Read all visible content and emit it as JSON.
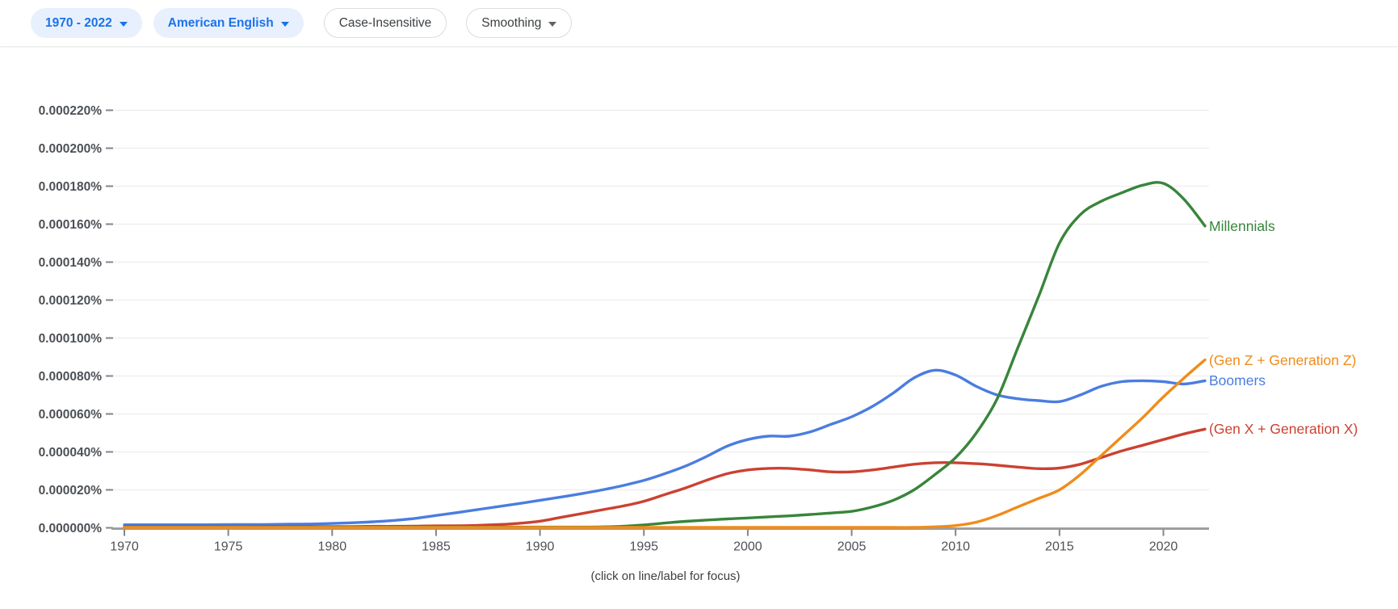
{
  "toolbar": {
    "year_range": {
      "label": "1970 - 2022"
    },
    "corpus": {
      "label": "American English"
    },
    "case_sensitivity": {
      "label": "Case-Insensitive"
    },
    "smoothing": {
      "label": "Smoothing"
    }
  },
  "chart_caption": "(click on line/label for focus)",
  "colors": {
    "accent_blue": "#1a73e8",
    "pill_selected_bg": "#e8f0fe",
    "pill_border": "#dadce0",
    "gridline": "#ededed",
    "axis_line": "#9e9e9e",
    "tick_mark": "#80868b",
    "axis_label_text": "#4d5156",
    "caption_text": "#3c4043"
  },
  "chart_data": {
    "type": "line",
    "title": "",
    "xlabel": "",
    "ylabel": "",
    "x_range": [
      1970,
      2022
    ],
    "x_ticks": [
      1970,
      1975,
      1980,
      1985,
      1990,
      1995,
      2000,
      2005,
      2010,
      2015,
      2020
    ],
    "y_tick_labels": [
      "0.000000%",
      "0.000020%",
      "0.000040%",
      "0.000060%",
      "0.000080%",
      "0.000100%",
      "0.000120%",
      "0.000140%",
      "0.000160%",
      "0.000180%",
      "0.000200%",
      "0.000220%"
    ],
    "y_ticks_e6": [
      0,
      20,
      40,
      60,
      80,
      100,
      120,
      140,
      160,
      180,
      200,
      220
    ],
    "value_unit": "1e-6 %",
    "grid": true,
    "legend_position": "right-of-line-end",
    "x_start_year": 1970,
    "series": [
      {
        "name": "Boomers",
        "color": "#4a7de0",
        "values_e6": [
          1.6,
          1.6,
          1.6,
          1.6,
          1.6,
          1.7,
          1.7,
          1.8,
          1.9,
          2.0,
          2.3,
          2.7,
          3.2,
          3.9,
          5.0,
          6.5,
          8.0,
          9.6,
          11.2,
          12.8,
          14.5,
          16.2,
          18.0,
          20.0,
          22.3,
          25.0,
          28.5,
          32.5,
          37.5,
          43.0,
          46.5,
          48.3,
          48.3,
          50.5,
          54.5,
          58.5,
          64.0,
          71.0,
          79.0,
          83.0,
          80.5,
          74.5,
          70.0,
          68.0,
          67.0,
          66.5,
          70.0,
          74.5,
          77.0,
          77.5,
          77.0,
          75.8,
          77.5
        ]
      },
      {
        "name": "(Gen X + Generation X)",
        "color": "#cc4131",
        "values_e6": [
          0.6,
          0.6,
          0.6,
          0.6,
          0.6,
          0.6,
          0.6,
          0.7,
          0.7,
          0.7,
          0.7,
          0.7,
          0.8,
          0.8,
          0.9,
          1.0,
          1.1,
          1.3,
          1.7,
          2.4,
          3.5,
          5.5,
          7.5,
          9.5,
          11.5,
          14.0,
          17.5,
          21.0,
          25.0,
          28.5,
          30.5,
          31.3,
          31.3,
          30.5,
          29.5,
          29.5,
          30.5,
          32.0,
          33.5,
          34.3,
          34.3,
          33.8,
          33.0,
          32.0,
          31.2,
          31.5,
          33.5,
          37.0,
          40.5,
          43.5,
          46.5,
          49.5,
          52.0
        ]
      },
      {
        "name": "Millennials",
        "color": "#38853a",
        "values_e6": [
          0.3,
          0.3,
          0.3,
          0.3,
          0.3,
          0.3,
          0.3,
          0.3,
          0.3,
          0.3,
          0.3,
          0.3,
          0.3,
          0.4,
          0.4,
          0.4,
          0.4,
          0.4,
          0.4,
          0.4,
          0.4,
          0.4,
          0.4,
          0.5,
          0.8,
          1.5,
          2.5,
          3.4,
          4.1,
          4.7,
          5.2,
          5.8,
          6.3,
          7.0,
          7.8,
          8.7,
          11.0,
          14.5,
          20.0,
          28.0,
          37.0,
          50.0,
          68.0,
          95.0,
          122.0,
          150.0,
          165.0,
          172.0,
          176.5,
          180.5,
          181.5,
          173.0,
          159.0
        ]
      },
      {
        "name": "(Gen Z + Generation Z)",
        "color": "#f08c1a",
        "values_e6": [
          0.2,
          0.2,
          0.2,
          0.2,
          0.2,
          0.2,
          0.2,
          0.2,
          0.2,
          0.2,
          0.2,
          0.2,
          0.2,
          0.2,
          0.2,
          0.2,
          0.2,
          0.2,
          0.2,
          0.2,
          0.2,
          0.2,
          0.2,
          0.2,
          0.2,
          0.2,
          0.2,
          0.2,
          0.2,
          0.2,
          0.2,
          0.2,
          0.2,
          0.2,
          0.2,
          0.2,
          0.2,
          0.2,
          0.2,
          0.5,
          1.2,
          3.0,
          6.5,
          11.0,
          15.5,
          20.0,
          28.0,
          38.0,
          48.0,
          58.0,
          69.0,
          79.0,
          88.5
        ]
      }
    ]
  }
}
